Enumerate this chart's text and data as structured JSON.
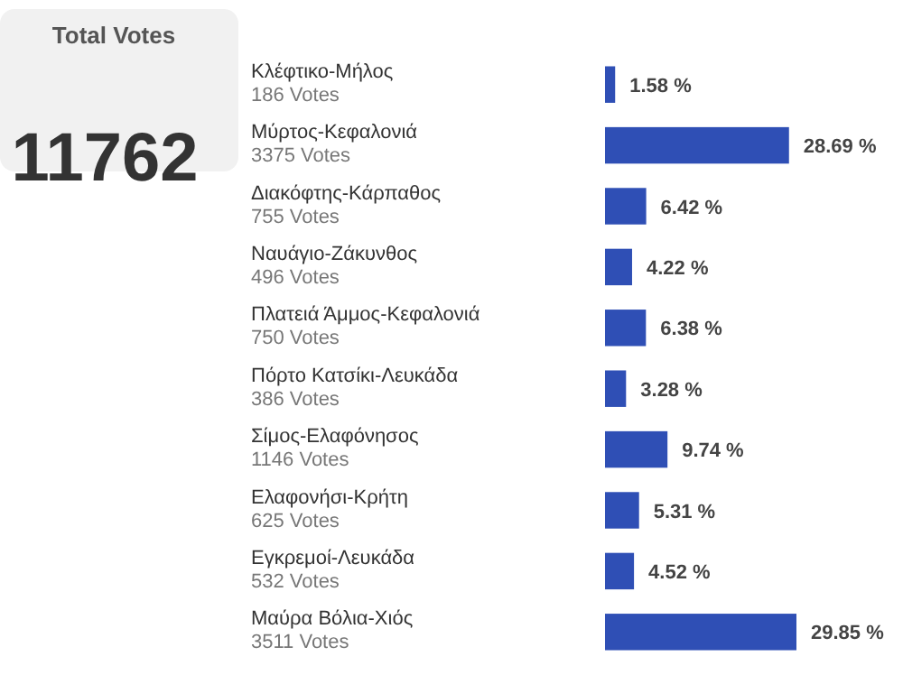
{
  "chart_data": {
    "type": "bar",
    "orientation": "horizontal",
    "title": "Total Votes",
    "subtitle": "11762",
    "categories": [
      "Κλέφτικο-Μήλος",
      "Μύρτος-Κεφαλονιά",
      "Διακόφτης-Κάρπαθος",
      "Ναυάγιο-Ζάκυνθος",
      "Πλατειά Άμμος-Κεφαλονιά",
      "Πόρτο Κατσίκι-Λευκάδα",
      "Σίμος-Ελαφόνησος",
      "Ελαφονήσι-Κρήτη",
      "Εγκρεμοί-Λευκάδα",
      "Μαύρα Βόλια-Χιός"
    ],
    "values": [
      1.58,
      28.69,
      6.42,
      4.22,
      6.38,
      3.28,
      9.74,
      5.31,
      4.52,
      29.85
    ],
    "value_labels": [
      "1.58 %",
      "28.69 %",
      "6.42 %",
      "4.22 %",
      "6.38 %",
      "3.28 %",
      "9.74 %",
      "5.31 %",
      "4.52 %",
      "29.85 %"
    ],
    "annotations": [
      "186 Votes",
      "3375 Votes",
      "755 Votes",
      "496 Votes",
      "750 Votes",
      "386 Votes",
      "1146 Votes",
      "625 Votes",
      "532 Votes",
      "3511 Votes"
    ],
    "color": "#2f4fb5",
    "tick_labels": false,
    "grid": false
  }
}
